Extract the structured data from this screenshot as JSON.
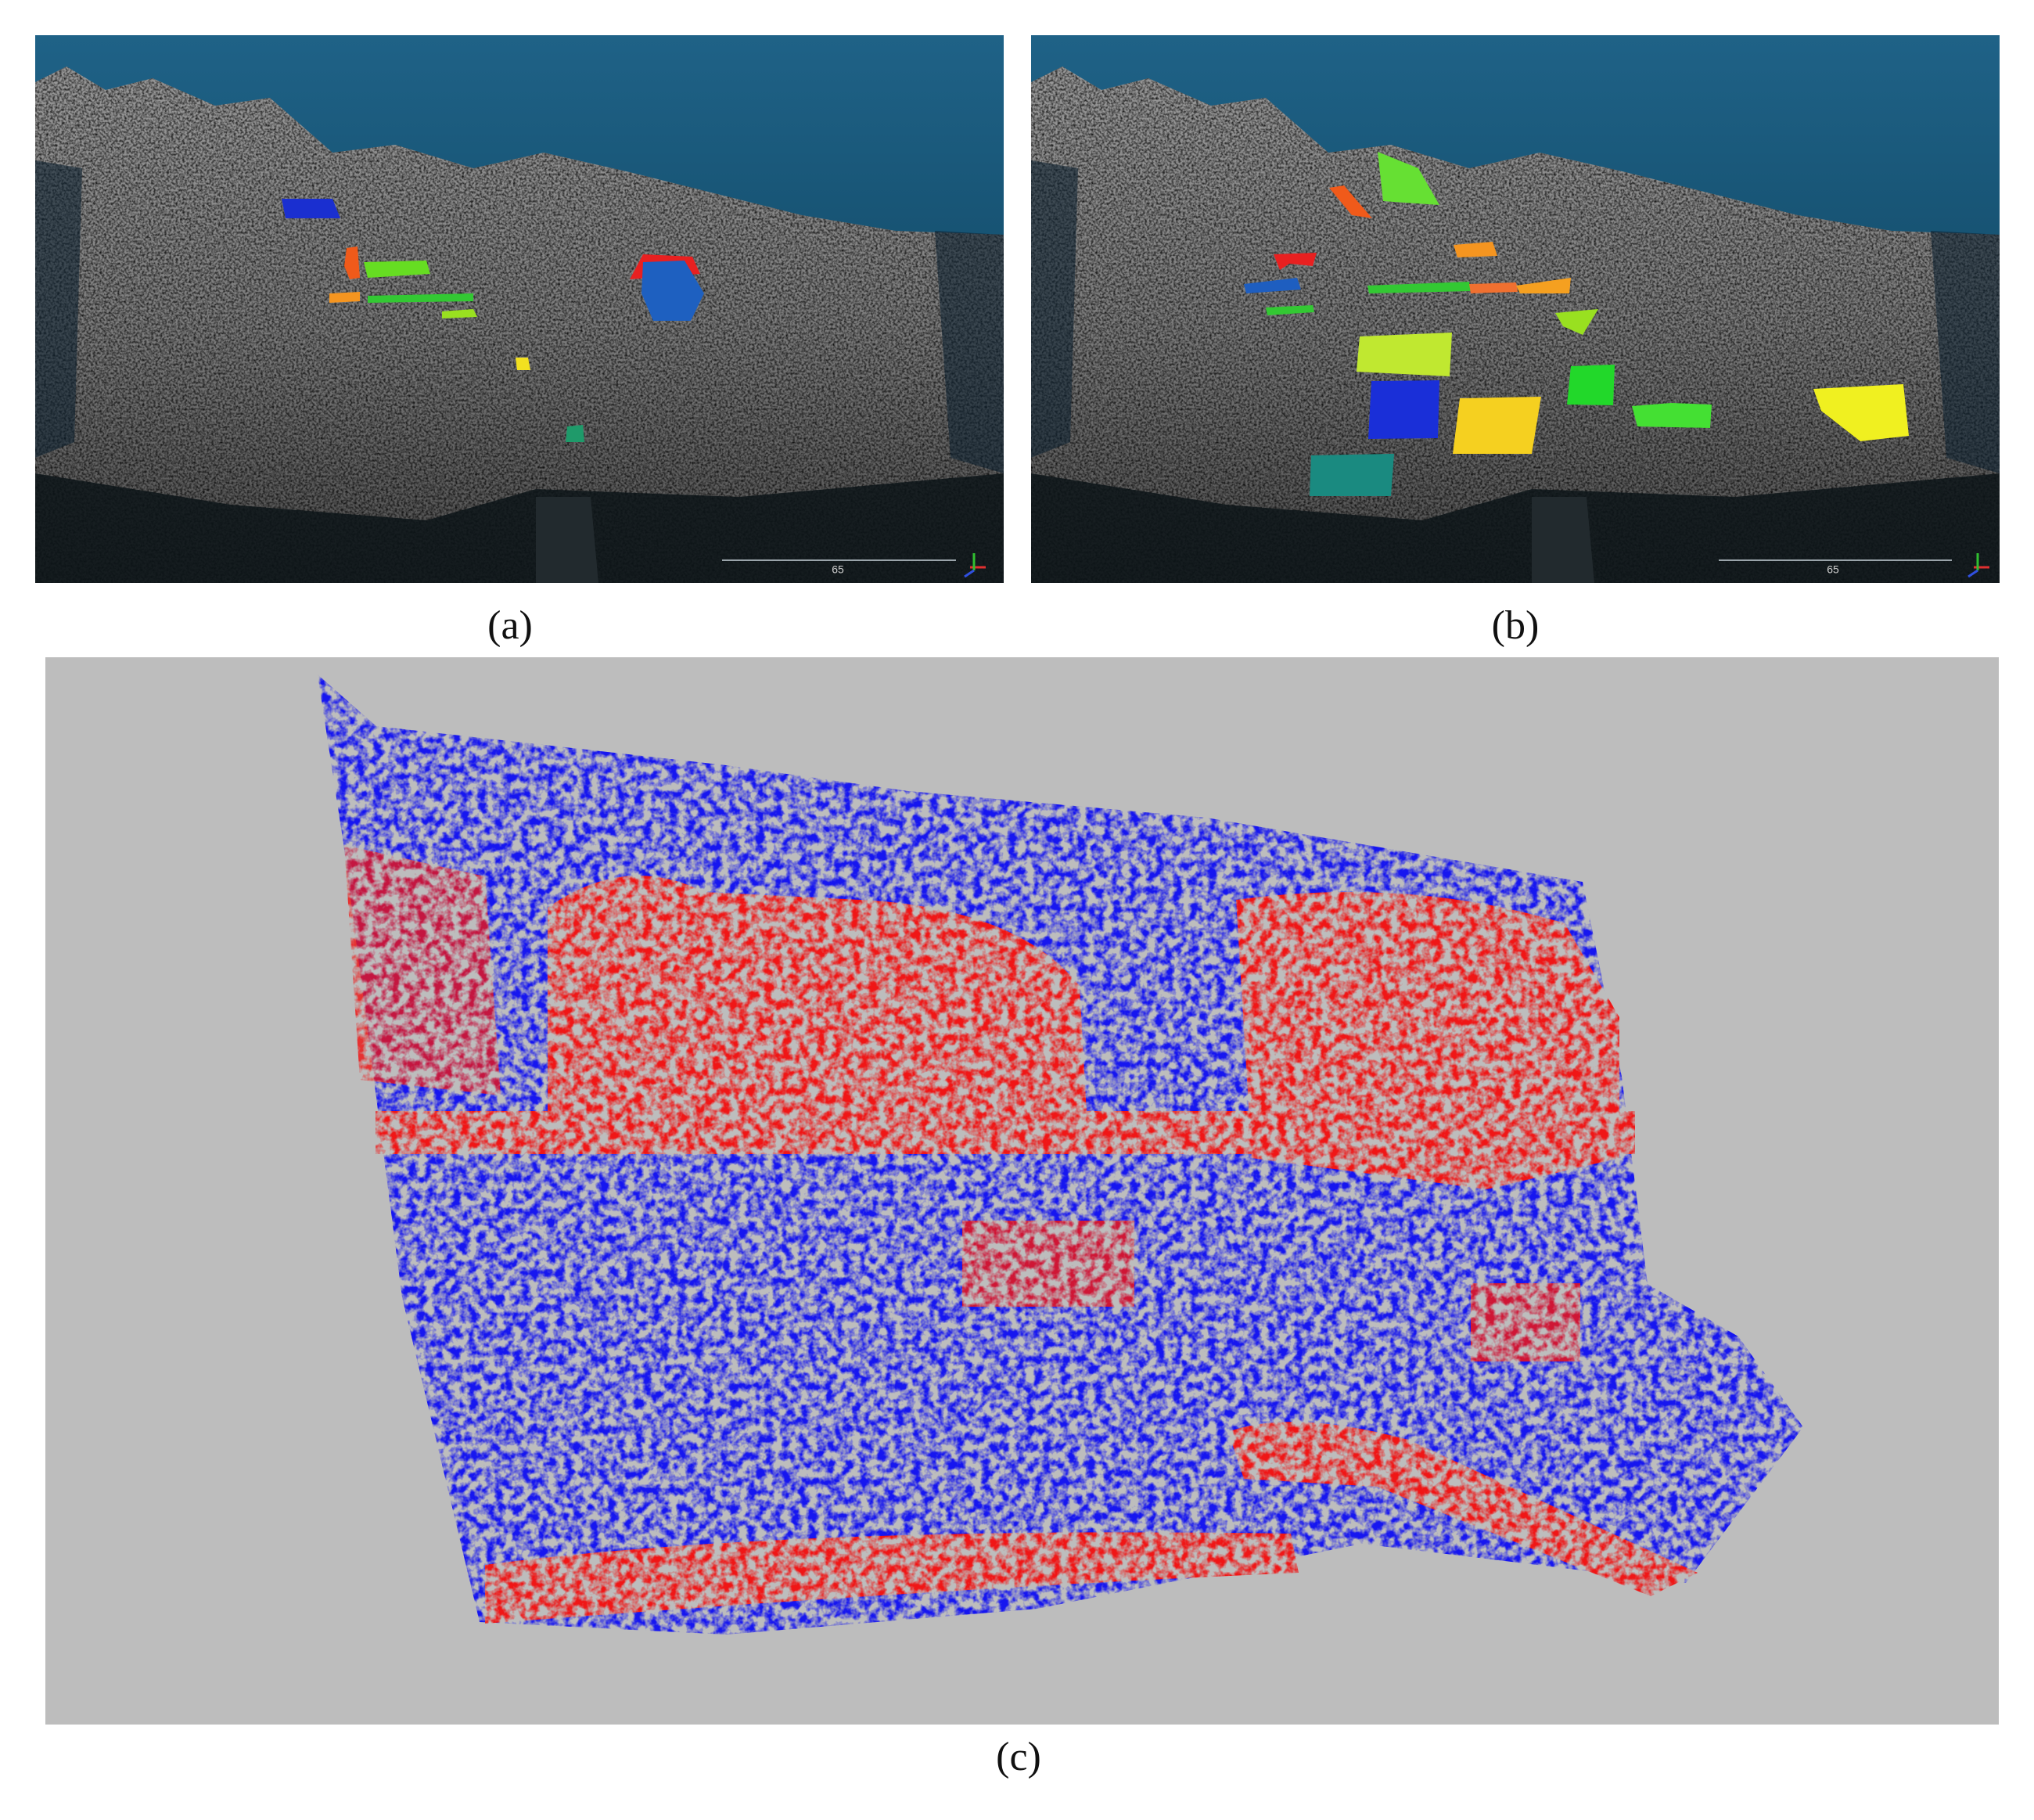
{
  "panels": [
    {
      "label": "(a)",
      "scale_label": "65"
    },
    {
      "label": "(b)",
      "scale_label": "65"
    },
    {
      "label": "(c)"
    }
  ]
}
